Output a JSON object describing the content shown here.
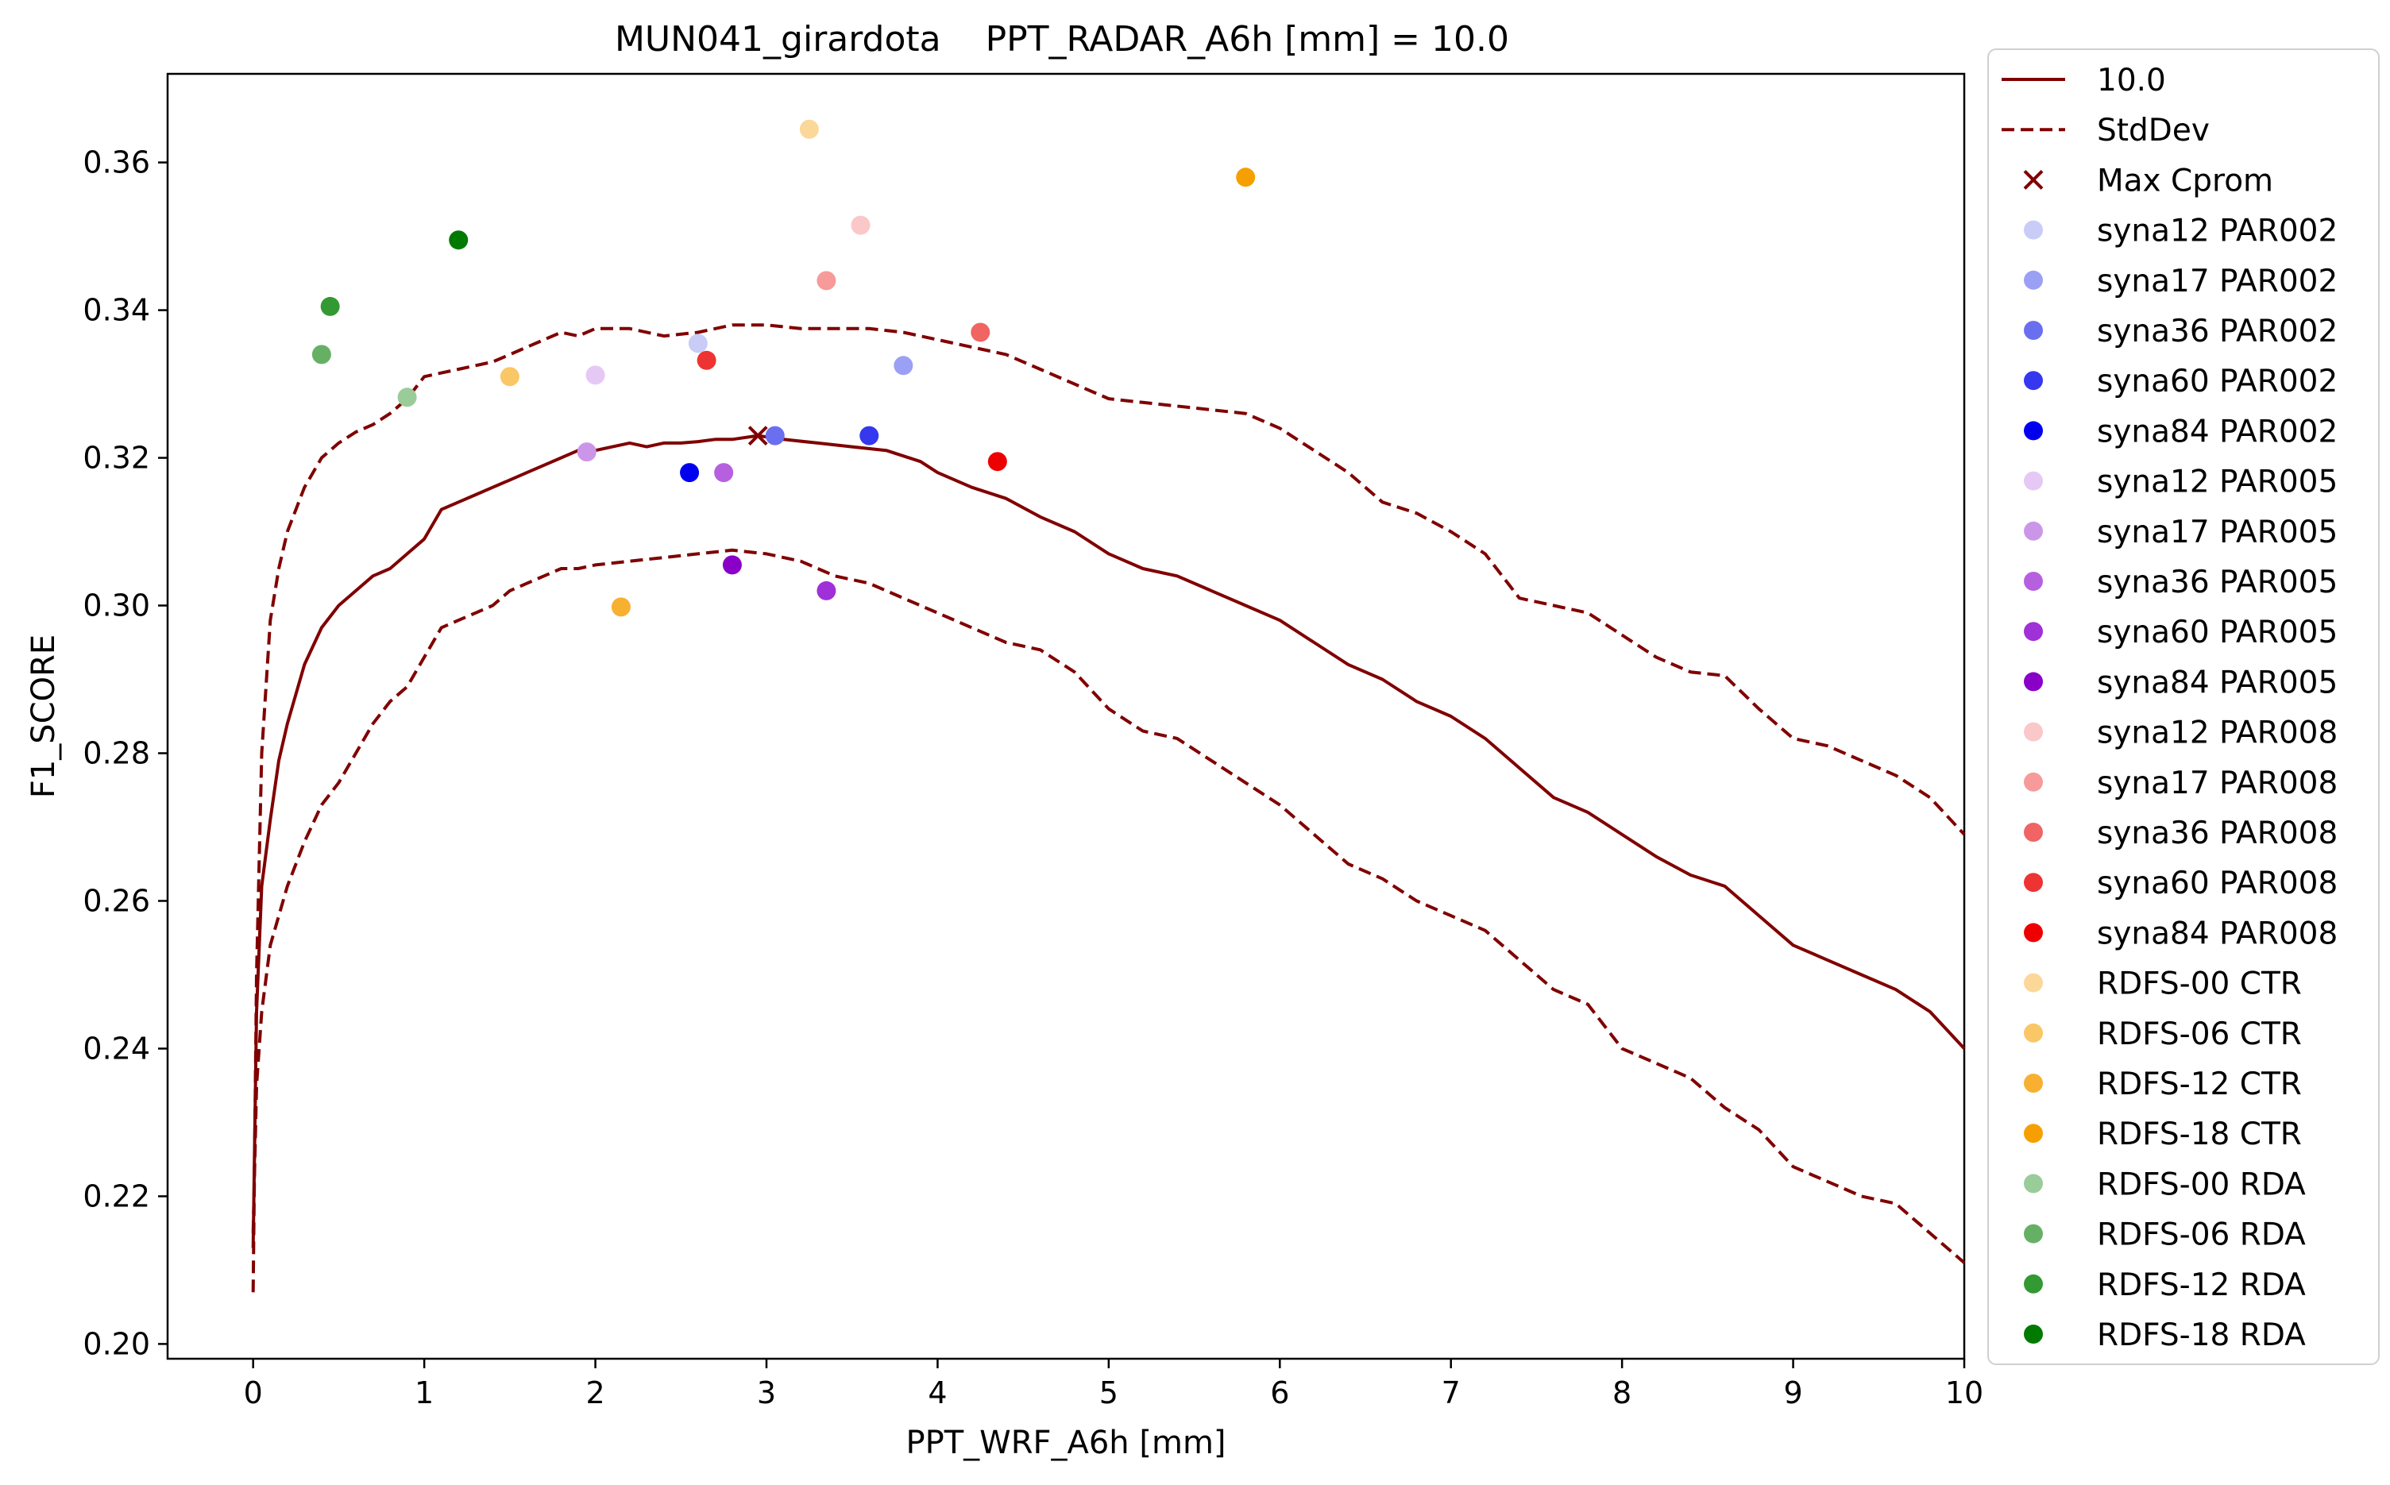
{
  "chart_data": {
    "type": "scatter",
    "title": "MUN041_girardota    PPT_RADAR_A6h [mm] = 10.0",
    "xlabel": "PPT_WRF_A6h [mm]",
    "ylabel": "F1_SCORE",
    "xlim": [
      -0.5,
      10
    ],
    "ylim": [
      0.198,
      0.372
    ],
    "xticks": [
      0,
      1,
      2,
      3,
      4,
      5,
      6,
      7,
      8,
      9,
      10
    ],
    "xtick_labels": [
      "0",
      "1",
      "2",
      "3",
      "4",
      "5",
      "6",
      "7",
      "8",
      "9",
      "10"
    ],
    "yticks": [
      0.2,
      0.22,
      0.24,
      0.26,
      0.28,
      0.3,
      0.32,
      0.34,
      0.36
    ],
    "ytick_labels": [
      "0.20",
      "0.22",
      "0.24",
      "0.26",
      "0.28",
      "0.30",
      "0.32",
      "0.34",
      "0.36"
    ],
    "grid": false,
    "legend_position": "outside-right",
    "lines": [
      {
        "name": "10.0",
        "color": "#800000",
        "style": "solid",
        "points": [
          [
            0.0,
            0.213
          ],
          [
            0.02,
            0.245
          ],
          [
            0.05,
            0.262
          ],
          [
            0.1,
            0.271
          ],
          [
            0.15,
            0.279
          ],
          [
            0.2,
            0.284
          ],
          [
            0.3,
            0.292
          ],
          [
            0.4,
            0.297
          ],
          [
            0.5,
            0.3
          ],
          [
            0.6,
            0.302
          ],
          [
            0.7,
            0.304
          ],
          [
            0.8,
            0.305
          ],
          [
            0.9,
            0.307
          ],
          [
            1.0,
            0.309
          ],
          [
            1.1,
            0.313
          ],
          [
            1.2,
            0.314
          ],
          [
            1.3,
            0.315
          ],
          [
            1.4,
            0.316
          ],
          [
            1.5,
            0.317
          ],
          [
            1.6,
            0.318
          ],
          [
            1.7,
            0.319
          ],
          [
            1.8,
            0.32
          ],
          [
            1.9,
            0.321
          ],
          [
            2.0,
            0.321
          ],
          [
            2.1,
            0.3215
          ],
          [
            2.2,
            0.322
          ],
          [
            2.3,
            0.3215
          ],
          [
            2.4,
            0.322
          ],
          [
            2.5,
            0.322
          ],
          [
            2.6,
            0.3222
          ],
          [
            2.7,
            0.3225
          ],
          [
            2.8,
            0.3225
          ],
          [
            2.95,
            0.323
          ],
          [
            3.1,
            0.3225
          ],
          [
            3.3,
            0.322
          ],
          [
            3.5,
            0.3215
          ],
          [
            3.7,
            0.321
          ],
          [
            3.9,
            0.3195
          ],
          [
            4.0,
            0.318
          ],
          [
            4.2,
            0.316
          ],
          [
            4.4,
            0.3145
          ],
          [
            4.6,
            0.312
          ],
          [
            4.8,
            0.31
          ],
          [
            5.0,
            0.307
          ],
          [
            5.2,
            0.305
          ],
          [
            5.4,
            0.304
          ],
          [
            5.6,
            0.302
          ],
          [
            5.8,
            0.3
          ],
          [
            6.0,
            0.298
          ],
          [
            6.2,
            0.295
          ],
          [
            6.4,
            0.292
          ],
          [
            6.6,
            0.29
          ],
          [
            6.8,
            0.287
          ],
          [
            7.0,
            0.285
          ],
          [
            7.2,
            0.282
          ],
          [
            7.4,
            0.278
          ],
          [
            7.6,
            0.274
          ],
          [
            7.8,
            0.272
          ],
          [
            8.0,
            0.269
          ],
          [
            8.2,
            0.266
          ],
          [
            8.4,
            0.2635
          ],
          [
            8.6,
            0.262
          ],
          [
            8.8,
            0.258
          ],
          [
            9.0,
            0.254
          ],
          [
            9.2,
            0.252
          ],
          [
            9.4,
            0.25
          ],
          [
            9.6,
            0.248
          ],
          [
            9.8,
            0.245
          ],
          [
            10.0,
            0.24
          ]
        ]
      },
      {
        "name": "StdDev",
        "color": "#800000",
        "style": "dashed",
        "points": [
          [
            0.0,
            0.207
          ],
          [
            0.02,
            0.25
          ],
          [
            0.05,
            0.28
          ],
          [
            0.1,
            0.298
          ],
          [
            0.15,
            0.305
          ],
          [
            0.2,
            0.31
          ],
          [
            0.3,
            0.316
          ],
          [
            0.4,
            0.32
          ],
          [
            0.5,
            0.322
          ],
          [
            0.6,
            0.3235
          ],
          [
            0.7,
            0.3245
          ],
          [
            0.8,
            0.326
          ],
          [
            0.9,
            0.328
          ],
          [
            1.0,
            0.331
          ],
          [
            1.1,
            0.3315
          ],
          [
            1.2,
            0.332
          ],
          [
            1.3,
            0.3325
          ],
          [
            1.4,
            0.333
          ],
          [
            1.5,
            0.334
          ],
          [
            1.6,
            0.335
          ],
          [
            1.7,
            0.336
          ],
          [
            1.8,
            0.337
          ],
          [
            1.9,
            0.3365
          ],
          [
            2.0,
            0.3375
          ],
          [
            2.2,
            0.3375
          ],
          [
            2.4,
            0.3365
          ],
          [
            2.6,
            0.337
          ],
          [
            2.8,
            0.338
          ],
          [
            3.0,
            0.338
          ],
          [
            3.2,
            0.3375
          ],
          [
            3.4,
            0.3375
          ],
          [
            3.6,
            0.3375
          ],
          [
            3.8,
            0.337
          ],
          [
            4.0,
            0.336
          ],
          [
            4.2,
            0.335
          ],
          [
            4.4,
            0.334
          ],
          [
            4.6,
            0.332
          ],
          [
            4.8,
            0.33
          ],
          [
            5.0,
            0.328
          ],
          [
            5.2,
            0.3275
          ],
          [
            5.4,
            0.327
          ],
          [
            5.6,
            0.3265
          ],
          [
            5.8,
            0.326
          ],
          [
            6.0,
            0.324
          ],
          [
            6.2,
            0.321
          ],
          [
            6.4,
            0.318
          ],
          [
            6.6,
            0.314
          ],
          [
            6.8,
            0.3125
          ],
          [
            7.0,
            0.31
          ],
          [
            7.2,
            0.307
          ],
          [
            7.4,
            0.301
          ],
          [
            7.6,
            0.3
          ],
          [
            7.8,
            0.299
          ],
          [
            8.0,
            0.296
          ],
          [
            8.2,
            0.293
          ],
          [
            8.4,
            0.291
          ],
          [
            8.6,
            0.2905
          ],
          [
            8.8,
            0.286
          ],
          [
            9.0,
            0.282
          ],
          [
            9.2,
            0.281
          ],
          [
            9.4,
            0.279
          ],
          [
            9.6,
            0.277
          ],
          [
            9.8,
            0.274
          ],
          [
            10.0,
            0.269
          ]
        ]
      },
      {
        "name": "StdDev-lower",
        "color": "#800000",
        "style": "dashed",
        "in_legend": false,
        "points": [
          [
            0.0,
            0.215
          ],
          [
            0.02,
            0.235
          ],
          [
            0.05,
            0.245
          ],
          [
            0.1,
            0.254
          ],
          [
            0.2,
            0.262
          ],
          [
            0.3,
            0.268
          ],
          [
            0.4,
            0.273
          ],
          [
            0.5,
            0.276
          ],
          [
            0.6,
            0.28
          ],
          [
            0.7,
            0.284
          ],
          [
            0.8,
            0.287
          ],
          [
            0.9,
            0.289
          ],
          [
            1.0,
            0.293
          ],
          [
            1.1,
            0.297
          ],
          [
            1.2,
            0.298
          ],
          [
            1.3,
            0.299
          ],
          [
            1.4,
            0.3
          ],
          [
            1.5,
            0.302
          ],
          [
            1.6,
            0.303
          ],
          [
            1.7,
            0.304
          ],
          [
            1.8,
            0.305
          ],
          [
            1.9,
            0.305
          ],
          [
            2.0,
            0.3055
          ],
          [
            2.2,
            0.306
          ],
          [
            2.4,
            0.3065
          ],
          [
            2.6,
            0.307
          ],
          [
            2.8,
            0.3075
          ],
          [
            3.0,
            0.307
          ],
          [
            3.2,
            0.306
          ],
          [
            3.4,
            0.304
          ],
          [
            3.6,
            0.303
          ],
          [
            3.8,
            0.301
          ],
          [
            4.0,
            0.299
          ],
          [
            4.2,
            0.297
          ],
          [
            4.4,
            0.295
          ],
          [
            4.6,
            0.294
          ],
          [
            4.8,
            0.291
          ],
          [
            5.0,
            0.286
          ],
          [
            5.2,
            0.283
          ],
          [
            5.4,
            0.282
          ],
          [
            5.6,
            0.279
          ],
          [
            5.8,
            0.276
          ],
          [
            6.0,
            0.273
          ],
          [
            6.2,
            0.269
          ],
          [
            6.4,
            0.265
          ],
          [
            6.6,
            0.263
          ],
          [
            6.8,
            0.26
          ],
          [
            7.0,
            0.258
          ],
          [
            7.2,
            0.256
          ],
          [
            7.4,
            0.252
          ],
          [
            7.6,
            0.248
          ],
          [
            7.8,
            0.246
          ],
          [
            8.0,
            0.24
          ],
          [
            8.2,
            0.238
          ],
          [
            8.4,
            0.236
          ],
          [
            8.6,
            0.232
          ],
          [
            8.8,
            0.229
          ],
          [
            9.0,
            0.224
          ],
          [
            9.2,
            0.222
          ],
          [
            9.4,
            0.22
          ],
          [
            9.6,
            0.219
          ],
          [
            9.8,
            0.215
          ],
          [
            10.0,
            0.211
          ]
        ]
      }
    ],
    "max_marker": {
      "name": "Max Cprom",
      "x": 2.95,
      "y": 0.323,
      "color": "#800000",
      "marker": "x"
    },
    "series": [
      {
        "name": "syna12 PAR002",
        "color": "#c8ccf7",
        "x": 2.6,
        "y": 0.3355
      },
      {
        "name": "syna17 PAR002",
        "color": "#9aa0f3",
        "x": 3.8,
        "y": 0.3325
      },
      {
        "name": "syna36 PAR002",
        "color": "#6a6ff0",
        "x": 3.05,
        "y": 0.323
      },
      {
        "name": "syna60 PAR002",
        "color": "#3538ee",
        "x": 3.6,
        "y": 0.323
      },
      {
        "name": "syna84 PAR002",
        "color": "#0000ee",
        "x": 2.55,
        "y": 0.318
      },
      {
        "name": "syna12 PAR005",
        "color": "#e6c8f5",
        "x": 2.0,
        "y": 0.3312
      },
      {
        "name": "syna17 PAR005",
        "color": "#cc96e8",
        "x": 1.95,
        "y": 0.3208
      },
      {
        "name": "syna36 PAR005",
        "color": "#b660e0",
        "x": 2.75,
        "y": 0.318
      },
      {
        "name": "syna60 PAR005",
        "color": "#a030d8",
        "x": 3.35,
        "y": 0.302
      },
      {
        "name": "syna84 PAR005",
        "color": "#8a00c8",
        "x": 2.8,
        "y": 0.3055
      },
      {
        "name": "syna12 PAR008",
        "color": "#fac8c8",
        "x": 3.55,
        "y": 0.3515
      },
      {
        "name": "syna17 PAR008",
        "color": "#f79a9a",
        "x": 3.35,
        "y": 0.344
      },
      {
        "name": "syna36 PAR008",
        "color": "#f06464",
        "x": 4.25,
        "y": 0.337
      },
      {
        "name": "syna60 PAR008",
        "color": "#ee3333",
        "x": 2.65,
        "y": 0.3332
      },
      {
        "name": "syna84 PAR008",
        "color": "#ee0000",
        "x": 4.35,
        "y": 0.3195
      },
      {
        "name": " RDFS-00 CTR",
        "color": "#fbd89a",
        "x": 3.25,
        "y": 0.3645
      },
      {
        "name": " RDFS-06 CTR",
        "color": "#f9c766",
        "x": 1.5,
        "y": 0.331
      },
      {
        "name": " RDFS-12 CTR",
        "color": "#f7b030",
        "x": 2.15,
        "y": 0.2998
      },
      {
        "name": " RDFS-18 CTR",
        "color": "#f5a000",
        "x": 5.8,
        "y": 0.358
      },
      {
        "name": " RDFS-00 RDA",
        "color": "#99cc99",
        "x": 0.9,
        "y": 0.3282
      },
      {
        "name": " RDFS-06 RDA",
        "color": "#66b066",
        "x": 0.4,
        "y": 0.334
      },
      {
        "name": " RDFS-12 RDA",
        "color": "#339933",
        "x": 0.45,
        "y": 0.3405
      },
      {
        "name": " RDFS-18 RDA",
        "color": "#007a00",
        "x": 1.2,
        "y": 0.3495
      }
    ],
    "legend": [
      {
        "label": "10.0",
        "kind": "line"
      },
      {
        "label": "StdDev",
        "kind": "dashed"
      },
      {
        "label": "Max Cprom",
        "kind": "x"
      },
      {
        "label": "syna12 PAR002",
        "kind": "dot"
      },
      {
        "label": "syna17 PAR002",
        "kind": "dot"
      },
      {
        "label": "syna36 PAR002",
        "kind": "dot"
      },
      {
        "label": "syna60 PAR002",
        "kind": "dot"
      },
      {
        "label": "syna84 PAR002",
        "kind": "dot"
      },
      {
        "label": "syna12 PAR005",
        "kind": "dot"
      },
      {
        "label": "syna17 PAR005",
        "kind": "dot"
      },
      {
        "label": "syna36 PAR005",
        "kind": "dot"
      },
      {
        "label": "syna60 PAR005",
        "kind": "dot"
      },
      {
        "label": "syna84 PAR005",
        "kind": "dot"
      },
      {
        "label": "syna12 PAR008",
        "kind": "dot"
      },
      {
        "label": "syna17 PAR008",
        "kind": "dot"
      },
      {
        "label": "syna36 PAR008",
        "kind": "dot"
      },
      {
        "label": "syna60 PAR008",
        "kind": "dot"
      },
      {
        "label": "syna84 PAR008",
        "kind": "dot"
      },
      {
        "label": " RDFS-00 CTR",
        "kind": "dot"
      },
      {
        "label": " RDFS-06 CTR",
        "kind": "dot"
      },
      {
        "label": " RDFS-12 CTR",
        "kind": "dot"
      },
      {
        "label": " RDFS-18 CTR",
        "kind": "dot"
      },
      {
        "label": " RDFS-00 RDA",
        "kind": "dot"
      },
      {
        "label": " RDFS-06 RDA",
        "kind": "dot"
      },
      {
        "label": " RDFS-12 RDA",
        "kind": "dot"
      },
      {
        "label": " RDFS-18 RDA",
        "kind": "dot"
      }
    ]
  }
}
